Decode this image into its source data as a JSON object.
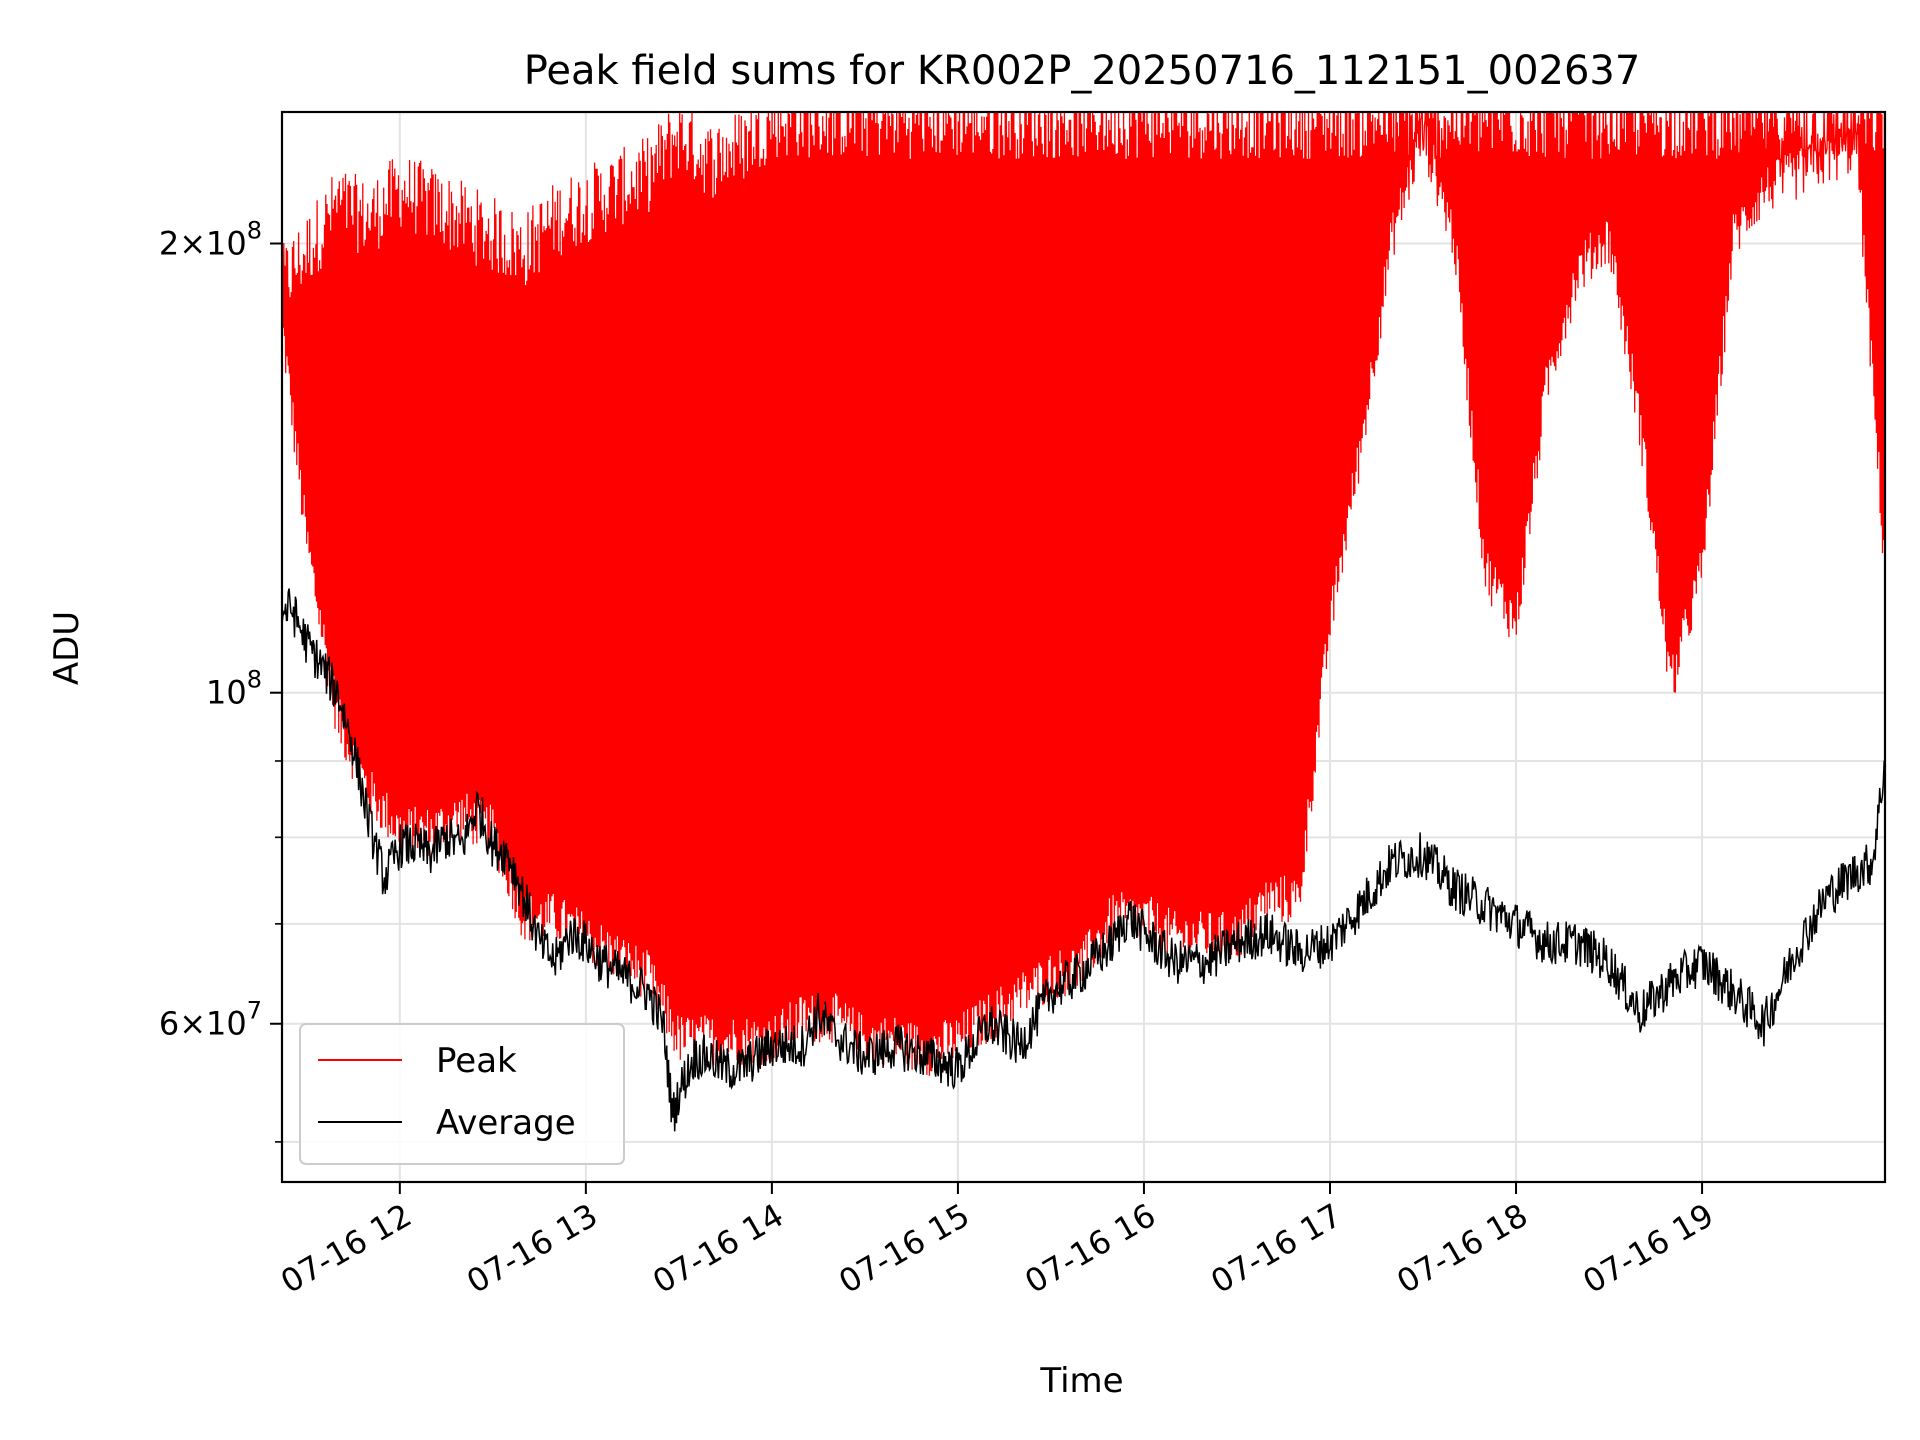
{
  "chart_data": {
    "type": "line",
    "title": "Peak field sums for KR002P_20250716_112151_002637",
    "xlabel": "Time",
    "ylabel": "ADU",
    "yscale": "log",
    "grid": true,
    "legend_position": "lower-left",
    "xlim": [
      "2025-07-16 11:22",
      "2025-07-16 19:59"
    ],
    "ylim": [
      47000000,
      245000000
    ],
    "x_ticks": [
      "07-16 12",
      "07-16 13",
      "07-16 14",
      "07-16 15",
      "07-16 16",
      "07-16 17",
      "07-16 18",
      "07-16 19"
    ],
    "y_major_ticks": [
      {
        "value": 60000000,
        "mantissa": "6",
        "exponent": "7"
      },
      {
        "value": 100000000,
        "mantissa": "",
        "exponent": "8"
      },
      {
        "value": 200000000,
        "mantissa": "2",
        "exponent": "8"
      }
    ],
    "y_minor_ticks": [
      50000000,
      70000000,
      80000000,
      90000000
    ],
    "series": [
      {
        "name": "Peak",
        "color": "#ff0000",
        "x": [
          "11:22",
          "11:30",
          "11:40",
          "11:50",
          "12:00",
          "12:10",
          "12:20",
          "12:30",
          "12:40",
          "12:50",
          "13:00",
          "13:10",
          "13:20",
          "13:30",
          "13:40",
          "13:50",
          "14:00",
          "14:10",
          "14:20",
          "14:30",
          "14:40",
          "14:50",
          "15:00",
          "15:10",
          "15:20",
          "15:30",
          "15:40",
          "15:50",
          "16:00",
          "16:10",
          "16:20",
          "16:30",
          "16:40",
          "16:50",
          "17:00",
          "17:10",
          "17:20",
          "17:30",
          "17:40",
          "17:50",
          "18:00",
          "18:10",
          "18:20",
          "18:30",
          "18:40",
          "18:50",
          "19:00",
          "19:10",
          "19:20",
          "19:30",
          "19:40",
          "19:50",
          "19:59"
        ],
        "low": [
          175000000,
          125000000,
          95000000,
          85000000,
          80000000,
          80000000,
          82000000,
          80000000,
          70000000,
          70000000,
          68000000,
          66000000,
          64000000,
          58000000,
          58000000,
          58000000,
          58000000,
          60000000,
          60000000,
          58000000,
          58000000,
          57000000,
          58000000,
          60000000,
          62000000,
          64000000,
          65000000,
          70000000,
          70000000,
          68000000,
          68000000,
          68000000,
          72000000,
          72000000,
          110000000,
          145000000,
          200000000,
          235000000,
          200000000,
          120000000,
          110000000,
          160000000,
          190000000,
          200000000,
          150000000,
          100000000,
          120000000,
          200000000,
          215000000,
          220000000,
          225000000,
          230000000,
          120000000
        ],
        "high": [
          190000000,
          200000000,
          215000000,
          210000000,
          220000000,
          215000000,
          210000000,
          205000000,
          200000000,
          210000000,
          215000000,
          220000000,
          225000000,
          240000000,
          230000000,
          235000000,
          245000000,
          245000000,
          245000000,
          245000000,
          245000000,
          245000000,
          245000000,
          245000000,
          245000000,
          245000000,
          245000000,
          245000000,
          245000000,
          245000000,
          245000000,
          245000000,
          245000000,
          245000000,
          245000000,
          245000000,
          245000000,
          245000000,
          245000000,
          245000000,
          245000000,
          245000000,
          245000000,
          245000000,
          245000000,
          245000000,
          245000000,
          245000000,
          245000000,
          245000000,
          245000000,
          245000000,
          245000000
        ]
      },
      {
        "name": "Average",
        "color": "#000000",
        "x": [
          "11:22",
          "11:25",
          "11:30",
          "11:35",
          "11:40",
          "11:45",
          "11:50",
          "11:55",
          "12:00",
          "12:05",
          "12:10",
          "12:15",
          "12:20",
          "12:25",
          "12:30",
          "12:35",
          "12:40",
          "12:45",
          "12:50",
          "12:55",
          "13:00",
          "13:05",
          "13:10",
          "13:15",
          "13:20",
          "13:25",
          "13:28",
          "13:30",
          "13:35",
          "13:40",
          "13:45",
          "13:50",
          "14:00",
          "14:10",
          "14:15",
          "14:20",
          "14:30",
          "14:40",
          "14:50",
          "15:00",
          "15:10",
          "15:20",
          "15:30",
          "15:40",
          "15:50",
          "15:55",
          "16:00",
          "16:10",
          "16:20",
          "16:30",
          "16:40",
          "16:50",
          "17:00",
          "17:10",
          "17:20",
          "17:30",
          "17:40",
          "17:50",
          "18:00",
          "18:10",
          "18:20",
          "18:30",
          "18:40",
          "18:50",
          "19:00",
          "19:10",
          "19:20",
          "19:30",
          "19:40",
          "19:50",
          "19:55",
          "19:59"
        ],
        "y": [
          113000000,
          114000000,
          108000000,
          104000000,
          100000000,
          92000000,
          82000000,
          75000000,
          79000000,
          79000000,
          78000000,
          80000000,
          79000000,
          84000000,
          79000000,
          78000000,
          73000000,
          68000000,
          66000000,
          69000000,
          68000000,
          66000000,
          65000000,
          64000000,
          63000000,
          60000000,
          52000000,
          54000000,
          57000000,
          57000000,
          56000000,
          56000000,
          58000000,
          58000000,
          61000000,
          59000000,
          57000000,
          58000000,
          57000000,
          56000000,
          60000000,
          58000000,
          63000000,
          65000000,
          68000000,
          71000000,
          69000000,
          66000000,
          66000000,
          68000000,
          69000000,
          67000000,
          68000000,
          72000000,
          77000000,
          78000000,
          74000000,
          72000000,
          70000000,
          68000000,
          68000000,
          66000000,
          61000000,
          64000000,
          66000000,
          63000000,
          60000000,
          67000000,
          73000000,
          76000000,
          77000000,
          90000000
        ]
      }
    ]
  }
}
